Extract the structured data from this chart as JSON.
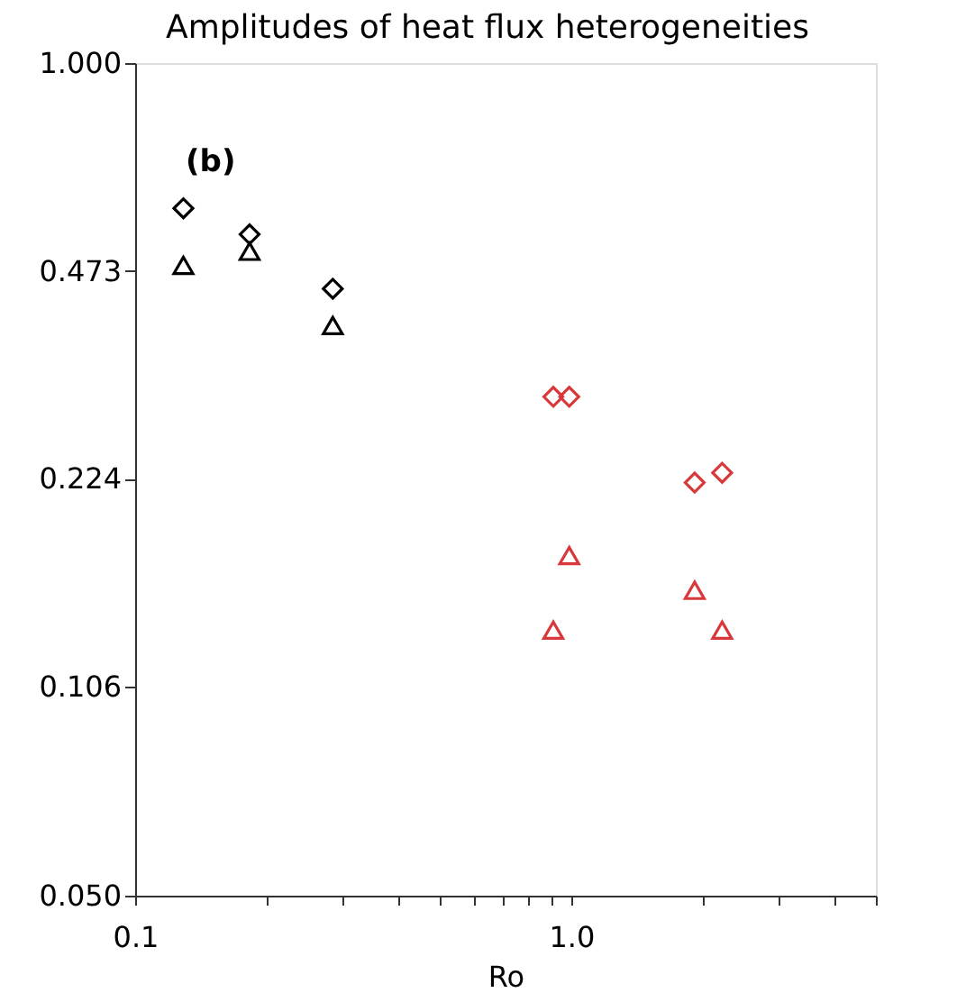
{
  "chart_data": {
    "type": "scatter",
    "title": "Amplitudes of heat flux heterogeneities",
    "xlabel": "Ro",
    "annotations": [
      "(b)"
    ],
    "log": "xy",
    "grid": false,
    "xlim": [
      0.1,
      5
    ],
    "ylim": [
      0.05,
      1.0
    ],
    "xticks": [
      0.1,
      {
        "value": 0.2,
        "label": null
      },
      {
        "value": 0.3,
        "label": null
      },
      {
        "value": 0.4,
        "label": null
      },
      {
        "value": 0.5,
        "label": null
      },
      {
        "value": 0.6,
        "label": null
      },
      {
        "value": 0.7,
        "label": null
      },
      {
        "value": 0.8,
        "label": null
      },
      {
        "value": 0.9,
        "label": null
      },
      {
        "value": 1,
        "label": "1.0"
      },
      {
        "value": 2,
        "label": null
      },
      {
        "value": 3,
        "label": null
      },
      {
        "value": 4,
        "label": null
      },
      {
        "value": 5,
        "label": null
      }
    ],
    "yticks": [
      {
        "value": 1,
        "label": "1.000"
      },
      0.473,
      0.224,
      0.106,
      {
        "value": 0.05,
        "label": "0.050"
      }
    ],
    "series": [
      {
        "color": "#000000",
        "marker": "diamond",
        "x": [
          0.129,
          0.183,
          0.284
        ],
        "values": [
          0.593,
          0.54,
          0.444
        ]
      },
      {
        "color": "#000000",
        "marker": "triangle",
        "x": [
          0.129,
          0.183,
          0.284
        ],
        "values": [
          0.483,
          0.508,
          0.389
        ]
      },
      {
        "color": "#d9383a",
        "marker": "diamond",
        "x": [
          0.91,
          0.99,
          1.92,
          2.22
        ],
        "values": [
          0.301,
          0.301,
          0.221,
          0.229
        ]
      },
      {
        "color": "#d9383a",
        "marker": "triangle",
        "x": [
          0.99,
          0.91,
          1.92,
          2.22
        ],
        "values": [
          0.17,
          0.13,
          0.15,
          0.13
        ]
      }
    ]
  }
}
